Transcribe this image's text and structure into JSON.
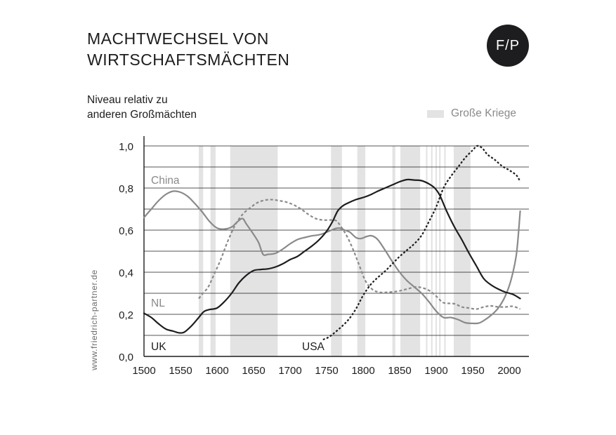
{
  "title_lines": [
    "MACHTWECHSEL VON",
    "WIRTSCHAFTSMÄCHTEN"
  ],
  "logo_text": "F/P",
  "watermark": "www.friedrich-partner.de",
  "legend": {
    "wars_label": "Große Kriege"
  },
  "colors": {
    "dark": "#1d1d1f",
    "gray": "#8a8a8a",
    "war_band": "#e3e3e3",
    "grid": "#1d1d1f"
  },
  "chart_data": {
    "type": "line",
    "title": "MACHTWECHSEL VON WIRTSCHAFTSMÄCHTEN",
    "ylabel_lines": [
      "Niveau relativ zu",
      "anderen Großmächten"
    ],
    "xlabel": "",
    "xlim": [
      1500,
      2030
    ],
    "ylim": [
      0.0,
      1.0
    ],
    "x_ticks": [
      1500,
      1550,
      1600,
      1650,
      1700,
      1750,
      1800,
      1850,
      1900,
      1950,
      2000
    ],
    "y_ticks": [
      0.0,
      0.1,
      0.2,
      0.3,
      0.4,
      0.5,
      0.6,
      0.7,
      0.8,
      0.9,
      1.0
    ],
    "y_tick_labels": [
      {
        "value": 0.0,
        "label": "0,0"
      },
      {
        "value": 0.2,
        "label": "0,2"
      },
      {
        "value": 0.4,
        "label": "0,4"
      },
      {
        "value": 0.6,
        "label": "0,6"
      },
      {
        "value": 0.8,
        "label": "0,8"
      },
      {
        "value": 1.0,
        "label": "1,0"
      }
    ],
    "grid": true,
    "wars": [
      [
        1575,
        1581
      ],
      [
        1591,
        1598
      ],
      [
        1618,
        1683
      ],
      [
        1756,
        1771
      ],
      [
        1792,
        1803
      ],
      [
        1840,
        1844
      ],
      [
        1851,
        1878
      ],
      [
        1886,
        1888
      ],
      [
        1893,
        1895
      ],
      [
        1899,
        1901
      ],
      [
        1904,
        1906
      ],
      [
        1911,
        1913
      ],
      [
        1924,
        1947
      ]
    ],
    "series": [
      {
        "name": "China",
        "label": "China",
        "color": "#8a8a8a",
        "dash": "solid",
        "points": [
          [
            1500,
            0.66
          ],
          [
            1510,
            0.7
          ],
          [
            1520,
            0.74
          ],
          [
            1530,
            0.77
          ],
          [
            1540,
            0.785
          ],
          [
            1550,
            0.78
          ],
          [
            1560,
            0.76
          ],
          [
            1570,
            0.725
          ],
          [
            1580,
            0.685
          ],
          [
            1590,
            0.64
          ],
          [
            1600,
            0.61
          ],
          [
            1610,
            0.605
          ],
          [
            1620,
            0.615
          ],
          [
            1628,
            0.64
          ],
          [
            1635,
            0.655
          ],
          [
            1640,
            0.63
          ],
          [
            1650,
            0.58
          ],
          [
            1657,
            0.54
          ],
          [
            1663,
            0.485
          ],
          [
            1670,
            0.485
          ],
          [
            1680,
            0.49
          ],
          [
            1690,
            0.51
          ],
          [
            1700,
            0.535
          ],
          [
            1710,
            0.555
          ],
          [
            1720,
            0.565
          ],
          [
            1730,
            0.573
          ],
          [
            1740,
            0.578
          ],
          [
            1750,
            0.59
          ],
          [
            1760,
            0.605
          ],
          [
            1767,
            0.61
          ],
          [
            1775,
            0.6
          ],
          [
            1782,
            0.59
          ],
          [
            1790,
            0.565
          ],
          [
            1797,
            0.56
          ],
          [
            1805,
            0.57
          ],
          [
            1812,
            0.573
          ],
          [
            1820,
            0.555
          ],
          [
            1830,
            0.505
          ],
          [
            1840,
            0.45
          ],
          [
            1850,
            0.4
          ],
          [
            1860,
            0.36
          ],
          [
            1870,
            0.33
          ],
          [
            1880,
            0.3
          ],
          [
            1890,
            0.26
          ],
          [
            1900,
            0.215
          ],
          [
            1910,
            0.185
          ],
          [
            1920,
            0.185
          ],
          [
            1930,
            0.175
          ],
          [
            1940,
            0.16
          ],
          [
            1950,
            0.157
          ],
          [
            1958,
            0.158
          ],
          [
            1965,
            0.17
          ],
          [
            1975,
            0.195
          ],
          [
            1985,
            0.23
          ],
          [
            1995,
            0.29
          ],
          [
            2003,
            0.37
          ],
          [
            2010,
            0.49
          ],
          [
            2015,
            0.69
          ]
        ]
      },
      {
        "name": "NL",
        "label": "NL",
        "color": "#8a8a8a",
        "dash": "dashed",
        "points": [
          [
            1575,
            0.275
          ],
          [
            1582,
            0.305
          ],
          [
            1588,
            0.33
          ],
          [
            1596,
            0.39
          ],
          [
            1605,
            0.46
          ],
          [
            1615,
            0.55
          ],
          [
            1625,
            0.625
          ],
          [
            1635,
            0.675
          ],
          [
            1645,
            0.705
          ],
          [
            1655,
            0.73
          ],
          [
            1665,
            0.742
          ],
          [
            1675,
            0.745
          ],
          [
            1685,
            0.74
          ],
          [
            1695,
            0.733
          ],
          [
            1705,
            0.72
          ],
          [
            1715,
            0.7
          ],
          [
            1725,
            0.675
          ],
          [
            1735,
            0.655
          ],
          [
            1745,
            0.648
          ],
          [
            1755,
            0.648
          ],
          [
            1763,
            0.645
          ],
          [
            1770,
            0.615
          ],
          [
            1778,
            0.57
          ],
          [
            1786,
            0.51
          ],
          [
            1795,
            0.43
          ],
          [
            1803,
            0.36
          ],
          [
            1812,
            0.32
          ],
          [
            1822,
            0.305
          ],
          [
            1835,
            0.305
          ],
          [
            1848,
            0.31
          ],
          [
            1860,
            0.32
          ],
          [
            1872,
            0.33
          ],
          [
            1882,
            0.325
          ],
          [
            1892,
            0.31
          ],
          [
            1902,
            0.28
          ],
          [
            1910,
            0.255
          ],
          [
            1925,
            0.25
          ],
          [
            1935,
            0.235
          ],
          [
            1945,
            0.23
          ],
          [
            1955,
            0.225
          ],
          [
            1965,
            0.235
          ],
          [
            1975,
            0.24
          ],
          [
            1985,
            0.235
          ],
          [
            1995,
            0.235
          ],
          [
            2005,
            0.238
          ],
          [
            2015,
            0.225
          ]
        ]
      },
      {
        "name": "UK",
        "label": "UK",
        "color": "#1d1d1f",
        "dash": "solid",
        "points": [
          [
            1500,
            0.205
          ],
          [
            1510,
            0.185
          ],
          [
            1520,
            0.155
          ],
          [
            1530,
            0.13
          ],
          [
            1540,
            0.12
          ],
          [
            1548,
            0.112
          ],
          [
            1555,
            0.115
          ],
          [
            1565,
            0.145
          ],
          [
            1575,
            0.185
          ],
          [
            1582,
            0.213
          ],
          [
            1590,
            0.223
          ],
          [
            1600,
            0.23
          ],
          [
            1610,
            0.26
          ],
          [
            1620,
            0.3
          ],
          [
            1630,
            0.35
          ],
          [
            1640,
            0.385
          ],
          [
            1650,
            0.408
          ],
          [
            1660,
            0.413
          ],
          [
            1670,
            0.416
          ],
          [
            1680,
            0.425
          ],
          [
            1690,
            0.44
          ],
          [
            1700,
            0.46
          ],
          [
            1710,
            0.475
          ],
          [
            1720,
            0.5
          ],
          [
            1730,
            0.525
          ],
          [
            1740,
            0.555
          ],
          [
            1750,
            0.595
          ],
          [
            1758,
            0.64
          ],
          [
            1765,
            0.69
          ],
          [
            1772,
            0.715
          ],
          [
            1780,
            0.73
          ],
          [
            1790,
            0.745
          ],
          [
            1800,
            0.755
          ],
          [
            1810,
            0.768
          ],
          [
            1820,
            0.785
          ],
          [
            1830,
            0.8
          ],
          [
            1840,
            0.815
          ],
          [
            1850,
            0.83
          ],
          [
            1860,
            0.84
          ],
          [
            1870,
            0.838
          ],
          [
            1880,
            0.835
          ],
          [
            1890,
            0.82
          ],
          [
            1898,
            0.8
          ],
          [
            1905,
            0.765
          ],
          [
            1915,
            0.685
          ],
          [
            1925,
            0.615
          ],
          [
            1935,
            0.555
          ],
          [
            1945,
            0.49
          ],
          [
            1955,
            0.43
          ],
          [
            1965,
            0.37
          ],
          [
            1975,
            0.34
          ],
          [
            1985,
            0.32
          ],
          [
            1995,
            0.305
          ],
          [
            2005,
            0.295
          ],
          [
            2015,
            0.275
          ]
        ]
      },
      {
        "name": "USA",
        "label": "USA",
        "color": "#1d1d1f",
        "dash": "dotted",
        "points": [
          [
            1745,
            0.08
          ],
          [
            1752,
            0.09
          ],
          [
            1760,
            0.11
          ],
          [
            1770,
            0.14
          ],
          [
            1780,
            0.175
          ],
          [
            1790,
            0.225
          ],
          [
            1800,
            0.29
          ],
          [
            1810,
            0.34
          ],
          [
            1820,
            0.375
          ],
          [
            1830,
            0.405
          ],
          [
            1840,
            0.44
          ],
          [
            1850,
            0.475
          ],
          [
            1860,
            0.505
          ],
          [
            1870,
            0.535
          ],
          [
            1880,
            0.575
          ],
          [
            1890,
            0.64
          ],
          [
            1900,
            0.71
          ],
          [
            1910,
            0.8
          ],
          [
            1920,
            0.855
          ],
          [
            1930,
            0.9
          ],
          [
            1940,
            0.945
          ],
          [
            1950,
            0.98
          ],
          [
            1956,
            1.0
          ],
          [
            1963,
            0.99
          ],
          [
            1970,
            0.96
          ],
          [
            1980,
            0.935
          ],
          [
            1990,
            0.905
          ],
          [
            2000,
            0.885
          ],
          [
            2010,
            0.86
          ],
          [
            2015,
            0.83
          ]
        ]
      }
    ]
  }
}
